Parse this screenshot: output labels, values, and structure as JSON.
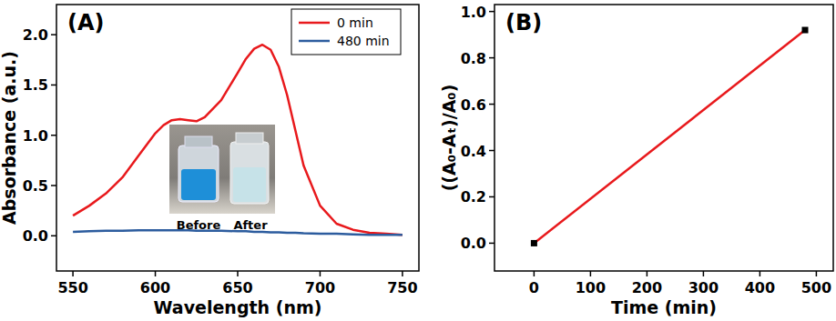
{
  "chart_data": [
    {
      "type": "line",
      "panel_label": "(A)",
      "x_label": "Wavelength (nm)",
      "y_label": "Absorbance (a.u.)",
      "x": [
        550,
        560,
        570,
        580,
        590,
        600,
        605,
        610,
        615,
        620,
        625,
        630,
        640,
        650,
        655,
        660,
        665,
        670,
        675,
        680,
        685,
        690,
        700,
        710,
        720,
        730,
        740,
        750
      ],
      "series": [
        {
          "name": "0 min",
          "color": "#e8191c",
          "values": [
            0.2,
            0.3,
            0.42,
            0.58,
            0.8,
            1.02,
            1.1,
            1.15,
            1.16,
            1.15,
            1.14,
            1.18,
            1.35,
            1.62,
            1.76,
            1.86,
            1.9,
            1.85,
            1.68,
            1.4,
            1.05,
            0.7,
            0.3,
            0.12,
            0.06,
            0.03,
            0.02,
            0.01
          ]
        },
        {
          "name": "480 min",
          "color": "#2c5c9e",
          "values": [
            0.04,
            0.045,
            0.05,
            0.05,
            0.055,
            0.055,
            0.055,
            0.055,
            0.055,
            0.055,
            0.05,
            0.05,
            0.05,
            0.045,
            0.045,
            0.04,
            0.04,
            0.035,
            0.035,
            0.03,
            0.03,
            0.025,
            0.02,
            0.02,
            0.015,
            0.01,
            0.01,
            0.01
          ]
        }
      ],
      "xlim": [
        540,
        760
      ],
      "ylim": [
        -0.35,
        2.3
      ],
      "xticks": [
        550,
        600,
        650,
        700,
        750
      ],
      "yticks": [
        {
          "value": 0,
          "label": "0.0"
        },
        {
          "value": 0.5,
          "label": "0.5"
        },
        {
          "value": 1,
          "label": "1.0"
        },
        {
          "value": 1.5,
          "label": "1.5"
        },
        {
          "value": 2,
          "label": "2.0"
        }
      ],
      "legend": "upper right",
      "inset_labels": [
        "Before",
        "After"
      ]
    },
    {
      "type": "line",
      "panel_label": "(B)",
      "x_label": "Time (min)",
      "y_label": "((A₀-Aₜ)/A₀)",
      "x": [
        0,
        480
      ],
      "series": [
        {
          "color": "#e8191c",
          "marker": "square",
          "values": [
            0,
            0.92
          ]
        }
      ],
      "xlim": [
        -70,
        530
      ],
      "ylim": [
        -0.12,
        1.03
      ],
      "xticks": [
        0,
        100,
        200,
        300,
        400,
        500
      ],
      "yticks": [
        {
          "value": 0,
          "label": "0.0"
        },
        {
          "value": 0.2,
          "label": "0.2"
        },
        {
          "value": 0.4,
          "label": "0.4"
        },
        {
          "value": 0.6,
          "label": "0.6"
        },
        {
          "value": 0.8,
          "label": "0.8"
        },
        {
          "value": 1,
          "label": "1.0"
        }
      ]
    }
  ]
}
